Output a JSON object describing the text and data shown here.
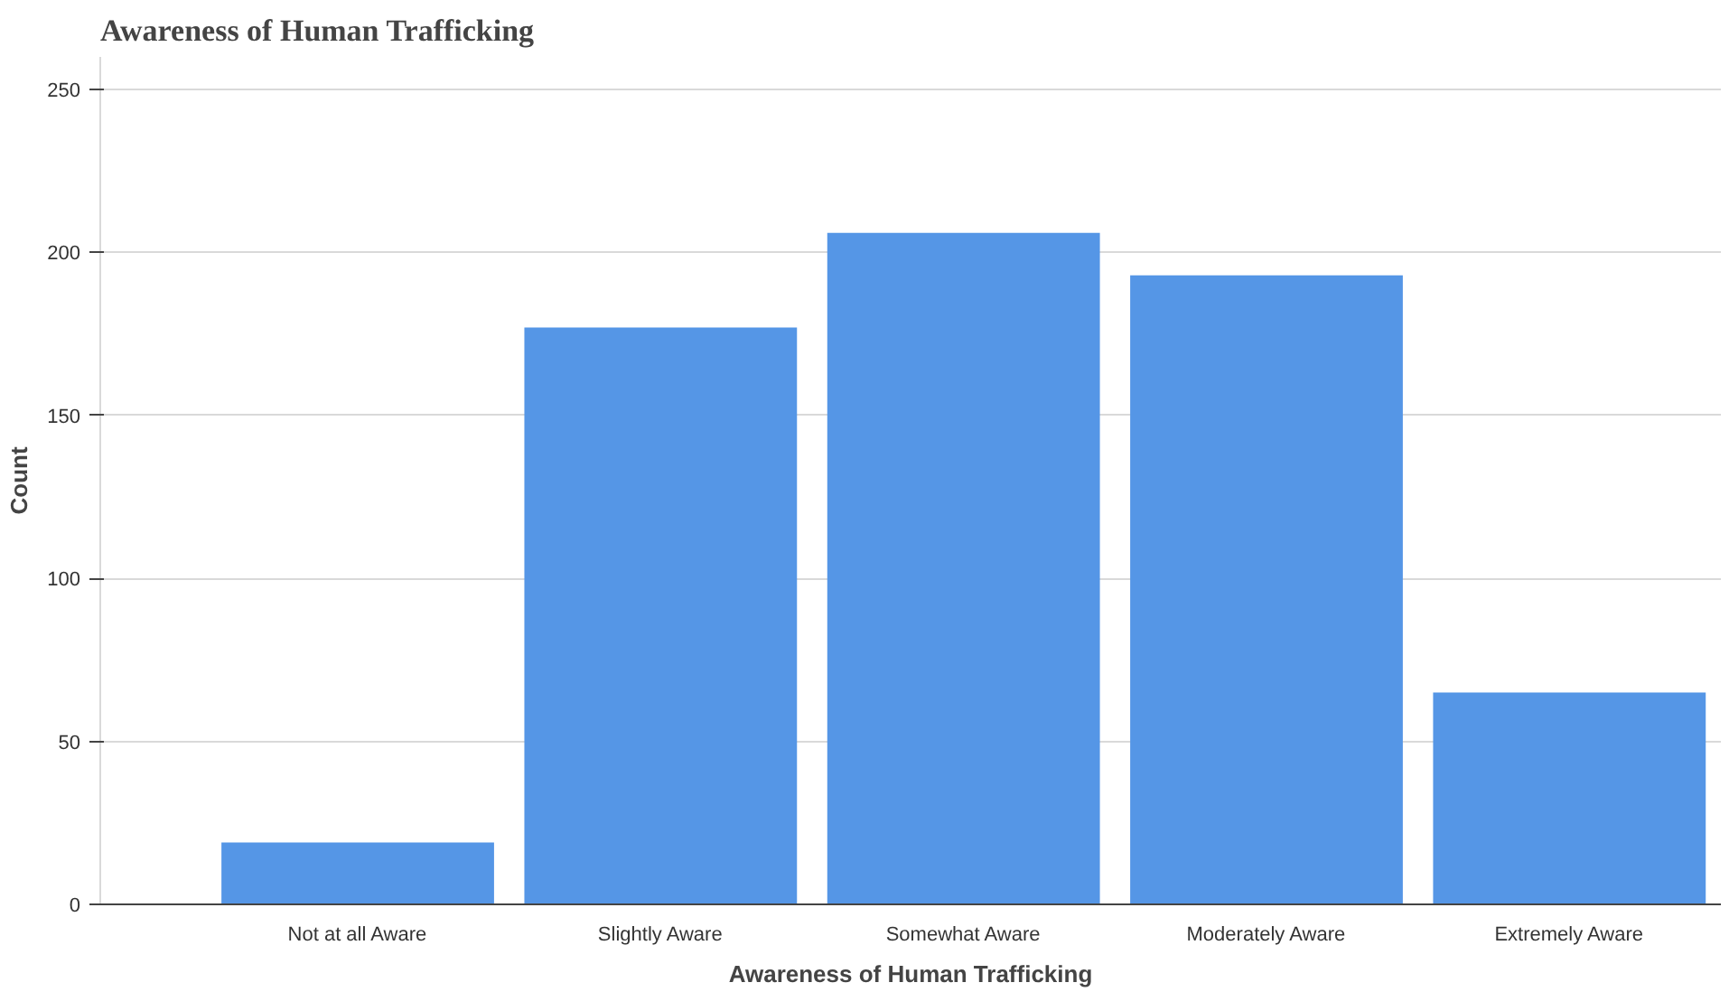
{
  "chart_data": {
    "type": "bar",
    "title": "Awareness of Human Trafficking",
    "xlabel": "Awareness of Human Trafficking",
    "ylabel": "Count",
    "categories": [
      "Not at all Aware",
      "Slightly Aware",
      "Somewhat Aware",
      "Moderately Aware",
      "Extremely Aware"
    ],
    "values": [
      19,
      177,
      206,
      193,
      65
    ],
    "color": "#5596e6",
    "ylim": [
      0,
      260
    ],
    "yticks": [
      0,
      50,
      100,
      150,
      200,
      250
    ],
    "grid": "y"
  }
}
